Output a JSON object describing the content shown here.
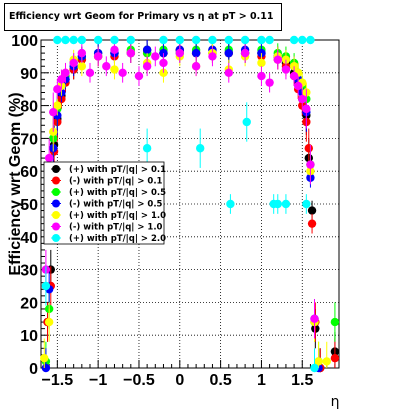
{
  "chart_data": {
    "type": "scatter",
    "title": "Efficiency wrt Geom for Primary vs   η at pT > 0.11",
    "xlabel": "η",
    "ylabel": "Efficiency wrt Geom (%)",
    "xlim": [
      -1.7,
      1.95
    ],
    "ylim": [
      0,
      100
    ],
    "xticks": [
      -1.5,
      -1,
      -0.5,
      0,
      0.5,
      1,
      1.5
    ],
    "xtick_labels": [
      "−1.5",
      "−1",
      "−0.5",
      "0",
      "0.5",
      "1",
      "1.5"
    ],
    "yticks": [
      0,
      10,
      20,
      30,
      40,
      50,
      60,
      70,
      80,
      90,
      100
    ],
    "ytick_labels": [
      "0",
      "10",
      "20",
      "30",
      "40",
      "50",
      "60",
      "70",
      "80",
      "90",
      "100"
    ],
    "grid": true,
    "legend_placement": "middle-left",
    "series": [
      {
        "name": "(+) with pT/|q| > 0.1",
        "color": "#000000",
        "x": [
          -1.62,
          -1.58,
          -1.54,
          -1.5,
          -1.45,
          -1.4,
          -1.3,
          -1.2,
          -1.0,
          -0.8,
          -0.6,
          -0.4,
          -0.2,
          0.0,
          0.2,
          0.4,
          0.6,
          0.8,
          1.0,
          1.2,
          1.3,
          1.4,
          1.45,
          1.5,
          1.55,
          1.58,
          1.62,
          1.66,
          1.72,
          1.9
        ],
        "y": [
          14,
          30,
          68,
          76,
          83,
          88,
          91,
          94,
          95,
          96,
          96,
          97,
          96,
          97,
          96,
          97,
          96,
          96,
          96,
          95,
          93,
          90,
          87,
          82,
          77,
          64,
          48,
          12,
          0,
          5
        ]
      },
      {
        "name": "(-) with pT/|q| > 0.1",
        "color": "#ff0000",
        "x": [
          -1.62,
          -1.58,
          -1.54,
          -1.5,
          -1.45,
          -1.4,
          -1.3,
          -1.2,
          -1.0,
          -0.8,
          -0.6,
          -0.4,
          -0.2,
          0.0,
          0.2,
          0.4,
          0.6,
          0.8,
          1.0,
          1.2,
          1.3,
          1.4,
          1.45,
          1.5,
          1.55,
          1.58,
          1.62,
          1.66,
          1.72,
          1.9
        ],
        "y": [
          14,
          25,
          66,
          75,
          82,
          87,
          91,
          94,
          95,
          95,
          96,
          96,
          96,
          97,
          96,
          96,
          96,
          96,
          95,
          94,
          92,
          89,
          85,
          80,
          75,
          67,
          44,
          14,
          0,
          3
        ]
      },
      {
        "name": "(+) with pT/|q| > 0.5",
        "color": "#00ff00",
        "x": [
          -1.64,
          -1.6,
          -1.55,
          -1.5,
          -1.45,
          -1.4,
          -1.3,
          -1.2,
          -1.0,
          -0.8,
          -0.6,
          -0.4,
          -0.2,
          0.0,
          0.2,
          0.4,
          0.6,
          0.8,
          1.0,
          1.2,
          1.3,
          1.4,
          1.45,
          1.5,
          1.55,
          1.6,
          1.65,
          1.7,
          1.9
        ],
        "y": [
          2,
          18,
          70,
          79,
          86,
          89,
          93,
          95,
          96,
          96,
          97,
          96,
          97,
          96,
          97,
          96,
          97,
          96,
          97,
          96,
          95,
          93,
          90,
          86,
          82,
          62,
          14,
          2,
          14
        ]
      },
      {
        "name": "(-) with pT/|q| > 0.5",
        "color": "#0000ff",
        "x": [
          -1.64,
          -1.6,
          -1.55,
          -1.5,
          -1.45,
          -1.4,
          -1.3,
          -1.2,
          -1.0,
          -0.8,
          -0.6,
          -0.4,
          -0.2,
          0.0,
          0.2,
          0.4,
          0.6,
          0.8,
          1.0,
          1.2,
          1.3,
          1.4,
          1.45,
          1.5,
          1.55,
          1.6,
          1.65,
          1.7
        ],
        "y": [
          0,
          24,
          67,
          77,
          84,
          88,
          92,
          95,
          96,
          96,
          96,
          97,
          96,
          97,
          96,
          97,
          96,
          97,
          96,
          95,
          94,
          92,
          88,
          84,
          78,
          58,
          15,
          0
        ]
      },
      {
        "name": "(+) with pT/|q| > 1.0",
        "color": "#ffff00",
        "x": [
          -1.66,
          -1.6,
          -1.55,
          -1.5,
          -1.45,
          -1.4,
          -1.3,
          -1.2,
          -1.0,
          -0.8,
          -0.6,
          -0.4,
          -0.2,
          0.0,
          0.2,
          0.4,
          0.6,
          0.8,
          1.0,
          1.2,
          1.3,
          1.4,
          1.45,
          1.5,
          1.55,
          1.6,
          1.65,
          1.7,
          1.8
        ],
        "y": [
          3,
          14,
          72,
          80,
          86,
          90,
          94,
          92,
          95,
          91,
          96,
          93,
          90,
          95,
          92,
          96,
          91,
          95,
          93,
          95,
          94,
          92,
          90,
          87,
          84,
          60,
          14,
          2,
          2
        ]
      },
      {
        "name": "(-) with pT/|q| > 1.0",
        "color": "#ff00ff",
        "x": [
          -1.64,
          -1.6,
          -1.55,
          -1.5,
          -1.45,
          -1.4,
          -1.3,
          -1.2,
          -1.1,
          -1.0,
          -0.9,
          -0.8,
          -0.7,
          -0.6,
          -0.5,
          -0.4,
          -0.3,
          -0.2,
          0.0,
          0.2,
          0.4,
          0.6,
          0.8,
          1.0,
          1.1,
          1.2,
          1.3,
          1.4,
          1.45,
          1.5,
          1.55,
          1.6,
          1.65
        ],
        "y": [
          30,
          64,
          78,
          85,
          88,
          90,
          93,
          96,
          90,
          95,
          92,
          97,
          90,
          96,
          89,
          92,
          95,
          93,
          96,
          92,
          95,
          90,
          96,
          89,
          87,
          94,
          91,
          89,
          86,
          82,
          79,
          62,
          15
        ]
      },
      {
        "name": "(+) with pT/|q| > 2.0",
        "color": "#00ffff",
        "x": [
          -1.64,
          -1.5,
          -1.4,
          -1.3,
          -1.2,
          -1.0,
          -0.8,
          -0.6,
          -0.4,
          -0.2,
          0.0,
          0.2,
          0.25,
          0.4,
          0.6,
          0.62,
          0.8,
          0.82,
          1.0,
          1.1,
          1.15,
          1.2,
          1.3,
          1.4,
          1.5,
          1.55,
          1.6,
          1.65
        ],
        "y": [
          25,
          100,
          100,
          100,
          100,
          100,
          100,
          100,
          67,
          100,
          100,
          100,
          67,
          100,
          100,
          50,
          100,
          75,
          100,
          100,
          50,
          50,
          50,
          100,
          100,
          50,
          100,
          0
        ]
      }
    ]
  }
}
